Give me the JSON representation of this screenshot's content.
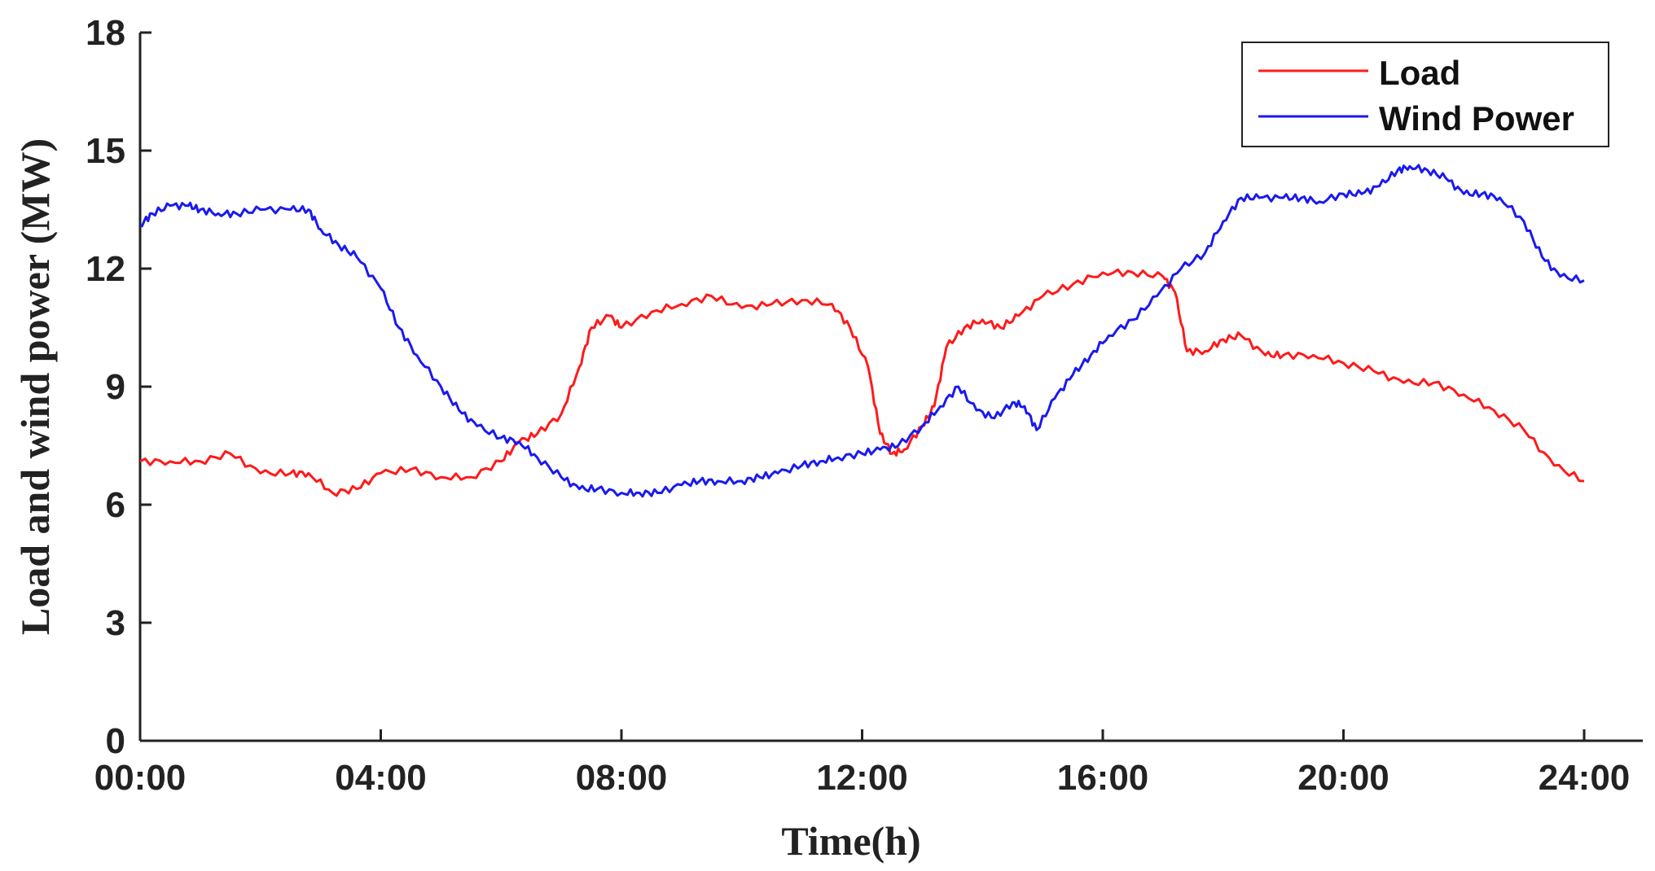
{
  "chart_data": {
    "type": "line",
    "xlabel": "Time(h)",
    "ylabel": "Load and wind power (MW)",
    "x_ticks": [
      "00:00",
      "04:00",
      "08:00",
      "12:00",
      "16:00",
      "20:00",
      "24:00"
    ],
    "y_ticks": [
      "0",
      "3",
      "6",
      "9",
      "12",
      "15",
      "18"
    ],
    "xlim": [
      0,
      24
    ],
    "ylim": [
      0,
      18
    ],
    "grid": false,
    "legend_position": "top-right",
    "series": [
      {
        "name": "Load",
        "color": "#ff1a1a",
        "x": [
          0,
          0.5,
          1,
          1.5,
          2,
          2.5,
          2.8,
          3.2,
          3.6,
          4,
          4.5,
          5,
          5.5,
          6,
          6.3,
          6.6,
          7,
          7.3,
          7.5,
          7.8,
          8,
          8.5,
          9,
          9.5,
          10,
          10.5,
          11,
          11.5,
          11.8,
          12.1,
          12.3,
          12.5,
          12.7,
          13,
          13.2,
          13.4,
          13.7,
          14,
          14.3,
          14.6,
          15,
          15.5,
          16,
          16.5,
          17,
          17.2,
          17.4,
          17.7,
          18,
          18.3,
          18.7,
          19,
          19.5,
          20,
          20.5,
          21,
          21.5,
          22,
          22.5,
          23,
          23.5,
          24
        ],
        "y": [
          7.1,
          7.1,
          7.1,
          7.3,
          6.8,
          6.8,
          6.8,
          6.3,
          6.4,
          6.8,
          6.9,
          6.7,
          6.7,
          7.1,
          7.6,
          7.8,
          8.3,
          9.5,
          10.5,
          10.8,
          10.5,
          10.9,
          11.1,
          11.3,
          11.0,
          11.1,
          11.2,
          11.1,
          10.5,
          9.5,
          7.8,
          7.3,
          7.4,
          8.0,
          8.5,
          10.0,
          10.5,
          10.7,
          10.5,
          10.8,
          11.3,
          11.6,
          11.9,
          11.9,
          11.8,
          11.4,
          9.9,
          9.9,
          10.2,
          10.3,
          9.8,
          9.8,
          9.8,
          9.6,
          9.4,
          9.1,
          9.1,
          8.8,
          8.4,
          7.9,
          7.0,
          6.6
        ]
      },
      {
        "name": "Wind Power",
        "color": "#1a1aee",
        "x": [
          0,
          0.2,
          0.5,
          0.8,
          1,
          1.3,
          1.6,
          2,
          2.5,
          2.8,
          3,
          3.3,
          3.6,
          4,
          4.3,
          4.6,
          5,
          5.3,
          5.6,
          6,
          6.3,
          6.6,
          7,
          7.3,
          7.6,
          8,
          8.3,
          8.6,
          9,
          9.3,
          9.6,
          10,
          10.3,
          10.6,
          11,
          11.3,
          11.6,
          12,
          12.3,
          12.6,
          13,
          13.3,
          13.6,
          13.9,
          14.2,
          14.5,
          14.7,
          14.9,
          15.2,
          15.5,
          15.8,
          16.1,
          16.5,
          16.9,
          17.3,
          17.7,
          18,
          18.3,
          18.6,
          19,
          19.3,
          19.6,
          20,
          20.3,
          20.6,
          20.9,
          21.1,
          21.4,
          21.7,
          22,
          22.3,
          22.6,
          23,
          23.3,
          23.6,
          24
        ],
        "y": [
          13.1,
          13.4,
          13.6,
          13.6,
          13.5,
          13.4,
          13.4,
          13.5,
          13.5,
          13.5,
          13.0,
          12.6,
          12.3,
          11.5,
          10.5,
          9.8,
          9.0,
          8.4,
          8.0,
          7.7,
          7.6,
          7.2,
          6.7,
          6.4,
          6.4,
          6.3,
          6.3,
          6.3,
          6.5,
          6.6,
          6.6,
          6.6,
          6.7,
          6.8,
          7.0,
          7.1,
          7.2,
          7.3,
          7.4,
          7.5,
          8.0,
          8.5,
          9.0,
          8.4,
          8.2,
          8.6,
          8.5,
          7.9,
          8.7,
          9.3,
          9.8,
          10.3,
          10.7,
          11.3,
          12.0,
          12.4,
          13.2,
          13.8,
          13.8,
          13.8,
          13.8,
          13.7,
          13.9,
          13.9,
          14.1,
          14.5,
          14.6,
          14.5,
          14.3,
          13.9,
          13.9,
          13.8,
          13.2,
          12.3,
          11.8,
          11.7
        ]
      }
    ]
  }
}
